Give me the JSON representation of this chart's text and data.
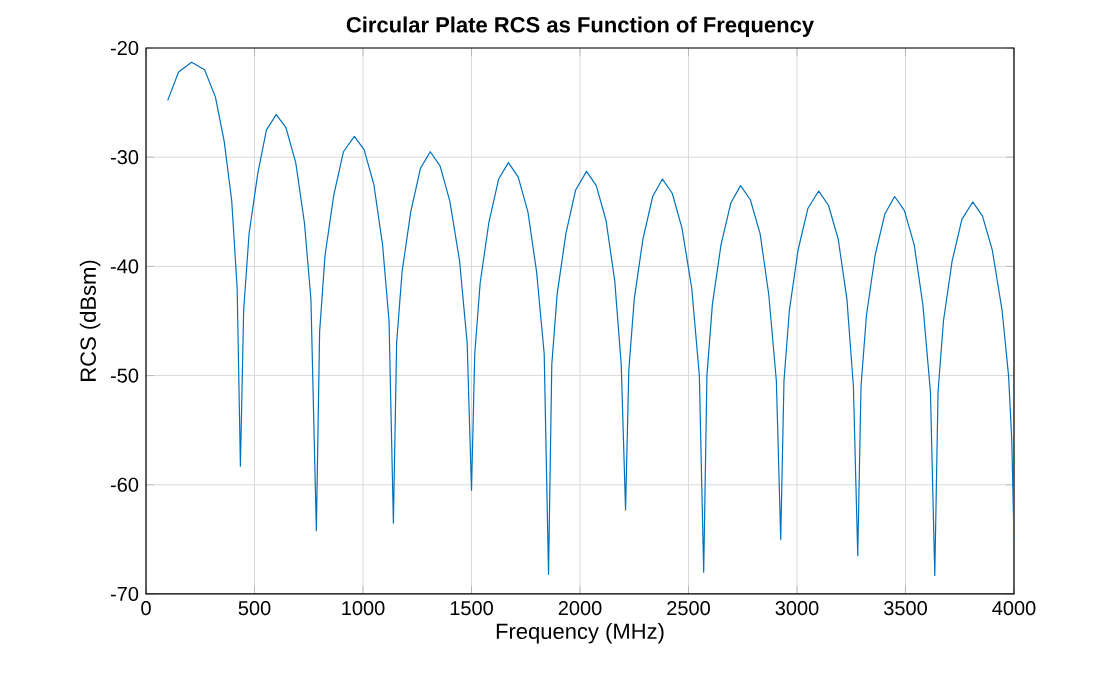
{
  "chart_data": {
    "type": "line",
    "title": "Circular Plate RCS as Function of Frequency",
    "xlabel": "Frequency (MHz)",
    "ylabel": "RCS (dBsm)",
    "xlim": [
      0,
      4000
    ],
    "ylim": [
      -70,
      -20
    ],
    "xticks": [
      0,
      500,
      1000,
      1500,
      2000,
      2500,
      3000,
      3500,
      4000
    ],
    "yticks": [
      -70,
      -60,
      -50,
      -40,
      -30,
      -20
    ],
    "grid": true,
    "series": [
      {
        "color": "#0072bd",
        "x": [
          100,
          150,
          210,
          270,
          320,
          360,
          395,
          420,
          435,
          450,
          475,
          515,
          555,
          600,
          645,
          690,
          730,
          760,
          785,
          800,
          825,
          865,
          910,
          960,
          1005,
          1050,
          1090,
          1120,
          1140,
          1155,
          1180,
          1220,
          1265,
          1310,
          1355,
          1400,
          1445,
          1480,
          1500,
          1515,
          1540,
          1580,
          1625,
          1670,
          1715,
          1760,
          1800,
          1835,
          1855,
          1870,
          1895,
          1935,
          1980,
          2030,
          2075,
          2120,
          2160,
          2190,
          2210,
          2225,
          2250,
          2290,
          2335,
          2380,
          2425,
          2470,
          2515,
          2550,
          2570,
          2585,
          2610,
          2650,
          2695,
          2740,
          2785,
          2830,
          2870,
          2905,
          2925,
          2940,
          2965,
          3005,
          3050,
          3100,
          3145,
          3190,
          3230,
          3260,
          3280,
          3295,
          3320,
          3360,
          3405,
          3450,
          3495,
          3540,
          3580,
          3615,
          3635,
          3650,
          3675,
          3715,
          3760,
          3810,
          3855,
          3900,
          3945,
          3975,
          3990,
          4000
        ],
        "values": [
          -24.8,
          -22.2,
          -21.3,
          -22.0,
          -24.5,
          -28.5,
          -34,
          -42,
          -58.3,
          -44,
          -37,
          -31.5,
          -27.5,
          -26.1,
          -27.3,
          -30.5,
          -36,
          -43,
          -64.2,
          -46,
          -39,
          -33.5,
          -29.5,
          -28.1,
          -29.3,
          -32.5,
          -38,
          -45,
          -63.5,
          -47,
          -40.5,
          -35,
          -31,
          -29.5,
          -30.8,
          -34,
          -39.5,
          -47,
          -60.5,
          -48,
          -41.5,
          -36,
          -32,
          -30.5,
          -31.8,
          -35,
          -40.5,
          -48,
          -68.2,
          -49,
          -42.5,
          -37,
          -33,
          -31.3,
          -32.6,
          -35.8,
          -41.3,
          -49,
          -62.3,
          -49.5,
          -43,
          -37.5,
          -33.6,
          -32,
          -33.3,
          -36.5,
          -42,
          -50,
          -68,
          -50,
          -43.5,
          -38,
          -34.2,
          -32.6,
          -33.9,
          -37,
          -42.6,
          -50.5,
          -65,
          -50.5,
          -44,
          -38.5,
          -34.7,
          -33.1,
          -34.4,
          -37.5,
          -43,
          -51,
          -66.5,
          -51,
          -44.5,
          -39,
          -35.2,
          -33.6,
          -34.9,
          -38,
          -43.5,
          -51.5,
          -68.3,
          -51.5,
          -45,
          -39.5,
          -35.7,
          -34.1,
          -35.4,
          -38.5,
          -44,
          -50,
          -56,
          -65
        ]
      }
    ]
  }
}
